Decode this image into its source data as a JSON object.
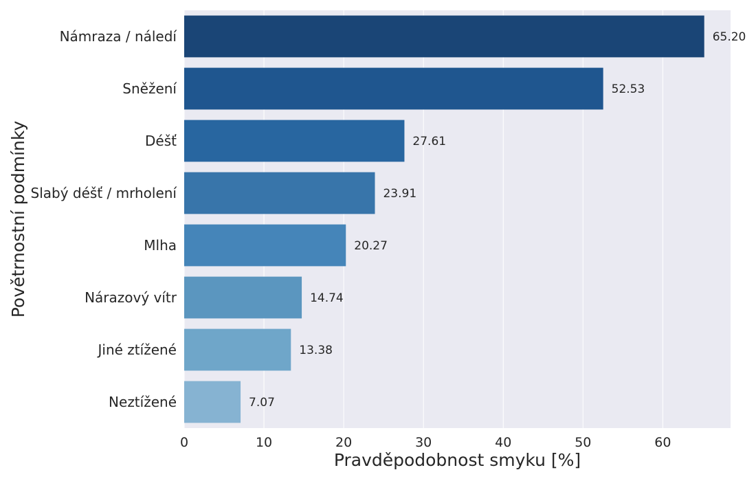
{
  "chart_data": {
    "type": "bar",
    "orientation": "horizontal",
    "title": "",
    "xlabel": "Pravděpodobnost smyku [%]",
    "ylabel": "Povětrnostní podmínky",
    "xlim": [
      0,
      68.5
    ],
    "xticks": [
      0,
      10,
      20,
      30,
      40,
      50,
      60
    ],
    "grid": true,
    "categories": [
      "Námraza / náledí",
      "Sněžení",
      "Déšť",
      "Slabý déšť / mrholení",
      "Mlha",
      "Nárazový vítr",
      "Jiné ztížené",
      "Neztížené"
    ],
    "values": [
      65.2,
      52.53,
      27.61,
      23.91,
      20.27,
      14.74,
      13.38,
      7.07
    ],
    "value_labels": [
      "65.20",
      "52.53",
      "27.61",
      "23.91",
      "20.27",
      "14.74",
      "13.38",
      "7.07"
    ],
    "colors": [
      "#1a4576",
      "#1f568f",
      "#2866a0",
      "#3875aa",
      "#4585b9",
      "#5b96bf",
      "#6fa6c9",
      "#86b3d2"
    ],
    "background": "#eaeaf2",
    "gridline_color": "#ffffff"
  }
}
